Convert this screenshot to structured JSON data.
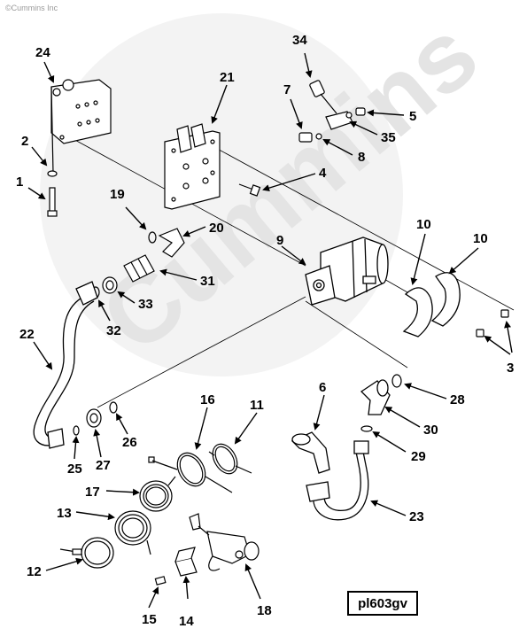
{
  "watermark": {
    "copyright": "©Cummins Inc",
    "logo_text": "Cummins"
  },
  "drawing_code": "pl603gv",
  "callouts": {
    "c1": "1",
    "c2": "2",
    "c3": "3",
    "c4": "4",
    "c5": "5",
    "c6": "6",
    "c7": "7",
    "c8": "8",
    "c9": "9",
    "c10a": "10",
    "c10b": "10",
    "c11": "11",
    "c12": "12",
    "c13": "13",
    "c14": "14",
    "c15": "15",
    "c16": "16",
    "c17": "17",
    "c18": "18",
    "c19": "19",
    "c20": "20",
    "c21": "21",
    "c22": "22",
    "c23": "23",
    "c24": "24",
    "c25": "25",
    "c26": "26",
    "c27": "27",
    "c28": "28",
    "c29": "29",
    "c30": "30",
    "c31": "31",
    "c32": "32",
    "c33": "33",
    "c34": "34",
    "c35": "35"
  },
  "colors": {
    "line": "#000000",
    "watermark": "#ececec",
    "background": "#ffffff"
  }
}
